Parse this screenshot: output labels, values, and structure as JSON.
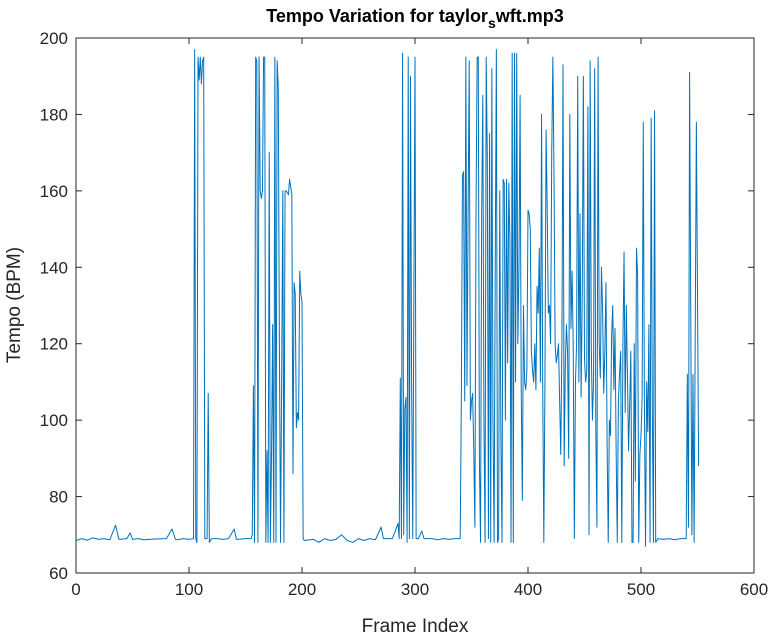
{
  "chart_data": {
    "type": "line",
    "title": [
      "Tempo Variation for taylor",
      "s",
      "wft.mp3"
    ],
    "xlabel": "Frame Index",
    "ylabel": "Tempo (BPM)",
    "xlim": [
      0,
      600
    ],
    "ylim": [
      60,
      200
    ],
    "xticks": [
      0,
      100,
      200,
      300,
      400,
      500,
      600
    ],
    "yticks": [
      60,
      80,
      100,
      120,
      140,
      160,
      180,
      200
    ],
    "color": "#0072BD",
    "x": [
      0,
      5,
      10,
      15,
      20,
      25,
      30,
      33,
      35,
      38,
      45,
      48,
      50,
      55,
      60,
      70,
      80,
      85,
      88,
      90,
      95,
      100,
      104,
      105,
      106,
      107,
      108,
      109,
      110,
      111,
      112,
      113,
      114,
      116,
      117,
      118,
      120,
      125,
      130,
      135,
      140,
      142,
      150,
      155,
      156,
      157,
      158,
      159,
      160,
      161,
      162,
      163,
      164,
      165,
      166,
      167,
      168,
      169,
      170,
      171,
      172,
      173,
      174,
      175,
      176,
      177,
      178,
      179,
      180,
      181,
      182,
      183,
      184,
      185,
      186,
      188,
      189,
      190,
      191,
      192,
      193,
      194,
      195,
      196,
      197,
      198,
      199,
      200,
      201,
      202,
      210,
      215,
      220,
      225,
      230,
      235,
      240,
      245,
      250,
      255,
      260,
      265,
      270,
      272,
      280,
      285,
      286,
      287,
      288,
      289,
      290,
      291,
      292,
      293,
      294,
      295,
      296,
      297,
      298,
      300,
      301,
      303,
      306,
      308,
      315,
      320,
      325,
      330,
      335,
      340,
      341,
      342,
      343,
      344,
      345,
      346,
      347,
      348,
      349,
      350,
      351,
      352,
      353,
      354,
      355,
      356,
      357,
      358,
      359,
      360,
      361,
      362,
      363,
      364,
      365,
      366,
      367,
      368,
      369,
      370,
      371,
      372,
      373,
      374,
      375,
      376,
      377,
      378,
      379,
      380,
      381,
      382,
      383,
      384,
      385,
      386,
      387,
      388,
      389,
      390,
      391,
      392,
      393,
      394,
      395,
      396,
      397,
      398,
      399,
      400,
      401,
      402,
      403,
      404,
      405,
      406,
      407,
      408,
      409,
      410,
      411,
      412,
      413,
      414,
      415,
      416,
      417,
      418,
      419,
      420,
      421,
      422,
      423,
      424,
      425,
      426,
      427,
      428,
      429,
      430,
      431,
      432,
      433,
      434,
      435,
      436,
      437,
      438,
      439,
      440,
      441,
      442,
      443,
      444,
      445,
      446,
      447,
      448,
      449,
      450,
      451,
      452,
      453,
      454,
      455,
      456,
      457,
      458,
      459,
      460,
      461,
      462,
      463,
      464,
      465,
      466,
      467,
      468,
      469,
      470,
      471,
      472,
      473,
      474,
      475,
      476,
      477,
      478,
      479,
      480,
      481,
      482,
      483,
      484,
      485,
      486,
      487,
      488,
      489,
      490,
      491,
      492,
      493,
      494,
      495,
      496,
      497,
      498,
      499,
      500,
      501,
      502,
      503,
      504,
      505,
      506,
      507,
      508,
      509,
      510,
      511,
      512,
      513,
      515,
      520,
      525,
      530,
      535,
      540,
      541,
      542,
      543,
      545,
      546,
      547,
      549,
      551
    ],
    "values": [
      68.5,
      69,
      68.6,
      69.2,
      68.8,
      69,
      68.7,
      71,
      72.5,
      68.8,
      69,
      70.5,
      68.8,
      69,
      68.7,
      68.9,
      69,
      71.5,
      68.8,
      68.7,
      69,
      68.8,
      69,
      197,
      69,
      68,
      195,
      189,
      195,
      188,
      194,
      195,
      69,
      69,
      107,
      68,
      69,
      69,
      68.8,
      69,
      71.5,
      68.8,
      69,
      69,
      70,
      109,
      68,
      195,
      194,
      68,
      195,
      160,
      158,
      160,
      195,
      195,
      68,
      92,
      68,
      170,
      68,
      90,
      125,
      68,
      195,
      68,
      194,
      187,
      120,
      68,
      110,
      160,
      68,
      160,
      160,
      159,
      163,
      161,
      159,
      86,
      136,
      133,
      98,
      102,
      100,
      139,
      133,
      131,
      69,
      68.5,
      68.8,
      68,
      69,
      68.5,
      68.8,
      70,
      68.5,
      68,
      69,
      68.5,
      69,
      68.7,
      72,
      69,
      69,
      73,
      69,
      111,
      69,
      196,
      70,
      103,
      106,
      68,
      195,
      69,
      190,
      110,
      69,
      195,
      69,
      69,
      71,
      69,
      69,
      68.7,
      69,
      68.8,
      69,
      69,
      105,
      164,
      165,
      105,
      195,
      109,
      155,
      194,
      100,
      105,
      107,
      92,
      72,
      155,
      195,
      195,
      89,
      68,
      154,
      185,
      100,
      68,
      195,
      168,
      69,
      175,
      68,
      192,
      100,
      68,
      140,
      197,
      68,
      69,
      160,
      96,
      68,
      163,
      162,
      100,
      163,
      115,
      162,
      147,
      68,
      196,
      68,
      196,
      110,
      196,
      120,
      140,
      185,
      108,
      79,
      130,
      110,
      108,
      113,
      155,
      154,
      150,
      118,
      113,
      110,
      120,
      108,
      135,
      128,
      145,
      110,
      180,
      110,
      68,
      110,
      176,
      155,
      128,
      130,
      120,
      170,
      195,
      165,
      120,
      115,
      117,
      120,
      105,
      91,
      120,
      193,
      88,
      114,
      125,
      118,
      90,
      180,
      124,
      139,
      120,
      69,
      110,
      120,
      190,
      110,
      154,
      106,
      133,
      190,
      116,
      110,
      113,
      182,
      70,
      194,
      119,
      100,
      110,
      192,
      98,
      72,
      195,
      120,
      111,
      140,
      129,
      107,
      118,
      136,
      94,
      68,
      100,
      96,
      122,
      130,
      108,
      124,
      92,
      68,
      105,
      112,
      118,
      68,
      120,
      144,
      102,
      130,
      112,
      92,
      104,
      118,
      68,
      68,
      120,
      84,
      145,
      138,
      68,
      91,
      96,
      106,
      178,
      105,
      67,
      110,
      97,
      125,
      68,
      179,
      104,
      68,
      181,
      68,
      69,
      68.8,
      69,
      68.7,
      69,
      69,
      112,
      72,
      191,
      70,
      112,
      68,
      178,
      88
    ]
  }
}
